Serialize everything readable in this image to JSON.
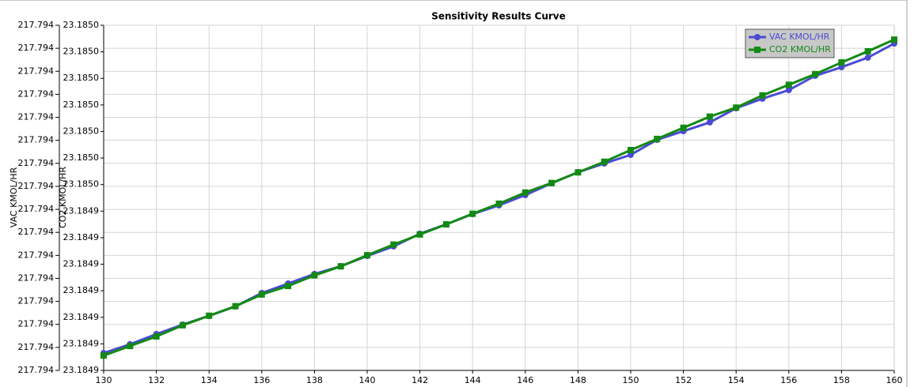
{
  "chart_data": {
    "type": "line",
    "title": "Sensitivity Results Curve",
    "y_label": "VAC KMOL/HR",
    "y2_label": "CO2 KMOL/HR",
    "x": [
      130,
      131,
      132,
      133,
      134,
      135,
      136,
      137,
      138,
      139,
      140,
      141,
      142,
      143,
      144,
      145,
      146,
      147,
      148,
      149,
      150,
      151,
      152,
      153,
      154,
      155,
      156,
      157,
      158,
      159,
      160
    ],
    "xlim": [
      130,
      160
    ],
    "xticks": [
      130,
      132,
      134,
      136,
      138,
      140,
      142,
      144,
      146,
      148,
      150,
      152,
      154,
      156,
      158,
      160
    ],
    "ylim": [
      217.79375,
      217.79405
    ],
    "yticks": [
      {
        "value": 217.79375,
        "label": "217.794"
      },
      {
        "value": 217.79377,
        "label": "217.794"
      },
      {
        "value": 217.79379,
        "label": "217.794"
      },
      {
        "value": 217.79381,
        "label": "217.794"
      },
      {
        "value": 217.79383,
        "label": "217.794"
      },
      {
        "value": 217.79385,
        "label": "217.794"
      },
      {
        "value": 217.79387,
        "label": "217.794"
      },
      {
        "value": 217.79389,
        "label": "217.794"
      },
      {
        "value": 217.79391,
        "label": "217.794"
      },
      {
        "value": 217.79393,
        "label": "217.794"
      },
      {
        "value": 217.79395,
        "label": "217.794"
      },
      {
        "value": 217.79397,
        "label": "217.794"
      },
      {
        "value": 217.79399,
        "label": "217.794"
      },
      {
        "value": 217.79401,
        "label": "217.794"
      },
      {
        "value": 217.79403,
        "label": "217.794"
      },
      {
        "value": 217.79405,
        "label": "217.794"
      }
    ],
    "y2lim": [
      23.184916,
      23.184981
    ],
    "y2ticks": [
      {
        "value": 23.184916,
        "label": "23.1849"
      },
      {
        "value": 23.184921,
        "label": "23.1849"
      },
      {
        "value": 23.184926,
        "label": "23.1849"
      },
      {
        "value": 23.184931,
        "label": "23.1849"
      },
      {
        "value": 23.184936,
        "label": "23.1849"
      },
      {
        "value": 23.184941,
        "label": "23.1849"
      },
      {
        "value": 23.184946,
        "label": "23.1849"
      },
      {
        "value": 23.184951,
        "label": "23.1850"
      },
      {
        "value": 23.184956,
        "label": "23.1850"
      },
      {
        "value": 23.184961,
        "label": "23.1850"
      },
      {
        "value": 23.184966,
        "label": "23.1850"
      },
      {
        "value": 23.184971,
        "label": "23.1850"
      },
      {
        "value": 23.184976,
        "label": "23.1850"
      },
      {
        "value": 23.184981,
        "label": "23.1850"
      }
    ],
    "grid": true,
    "legend_position": "upper right",
    "series": [
      {
        "name": "VAC KMOL/HR",
        "color": "#4b4bd2",
        "marker": "circle",
        "values": [
          217.7937651,
          217.7937727,
          217.7937816,
          217.7937898,
          217.7937974,
          217.7938056,
          217.7938173,
          217.7938255,
          217.7938338,
          217.7938406,
          217.7938495,
          217.7938578,
          217.7938688,
          217.793877,
          217.7938859,
          217.7938935,
          217.7939024,
          217.7939127,
          217.7939223,
          217.7939299,
          217.7939374,
          217.7939505,
          217.793958,
          217.7939656,
          217.7939779,
          217.7939862,
          217.7939937,
          217.7940061,
          217.7940136,
          217.7940219,
          217.7940342
        ]
      },
      {
        "name": "CO2 KMOL/HR",
        "color": "#138a13",
        "marker": "square",
        "axis": "y2",
        "values": [
          23.1849188,
          23.1849206,
          23.1849224,
          23.1849245,
          23.1849263,
          23.1849281,
          23.1849303,
          23.1849319,
          23.1849339,
          23.1849356,
          23.1849377,
          23.1849397,
          23.1849416,
          23.1849435,
          23.1849455,
          23.1849474,
          23.1849495,
          23.1849513,
          23.1849533,
          23.1849553,
          23.1849575,
          23.1849596,
          23.1849617,
          23.1849638,
          23.1849655,
          23.1849678,
          23.1849698,
          23.1849718,
          23.184974,
          23.1849761,
          23.1849783
        ]
      }
    ]
  }
}
